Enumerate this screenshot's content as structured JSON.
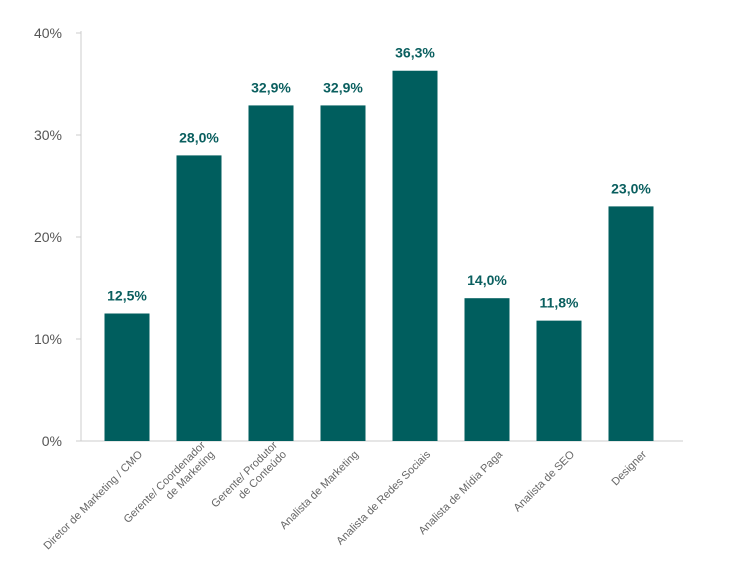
{
  "chart_data": {
    "type": "bar",
    "categories": [
      [
        "Diretor de Marketing / CMO"
      ],
      [
        "Gerente/ Coordenador",
        "de Marketing"
      ],
      [
        "Gerente/ Produtor",
        "de Conteúdo"
      ],
      [
        "Analista de Marketing"
      ],
      [
        "Analista de Redes Sociais"
      ],
      [
        "Analista de Mídia Paga"
      ],
      [
        "Analista de SEO"
      ],
      [
        "Designer"
      ]
    ],
    "values": [
      12.5,
      28.0,
      32.9,
      32.9,
      36.3,
      14.0,
      11.8,
      23.0
    ],
    "value_labels": [
      "12,5%",
      "28,0%",
      "32,9%",
      "32,9%",
      "36,3%",
      "14,0%",
      "11,8%",
      "23,0%"
    ],
    "yticks": [
      0,
      10,
      20,
      30,
      40
    ],
    "ytick_labels": [
      "0%",
      "10%",
      "20%",
      "30%",
      "40%"
    ],
    "ylim": [
      0,
      40
    ],
    "grid": false,
    "colors": {
      "bar": "#005e5e",
      "data_label": "#0a5f5f",
      "axis": "#cccccc",
      "tick_text": "#555555",
      "category_text": "#666666"
    }
  }
}
